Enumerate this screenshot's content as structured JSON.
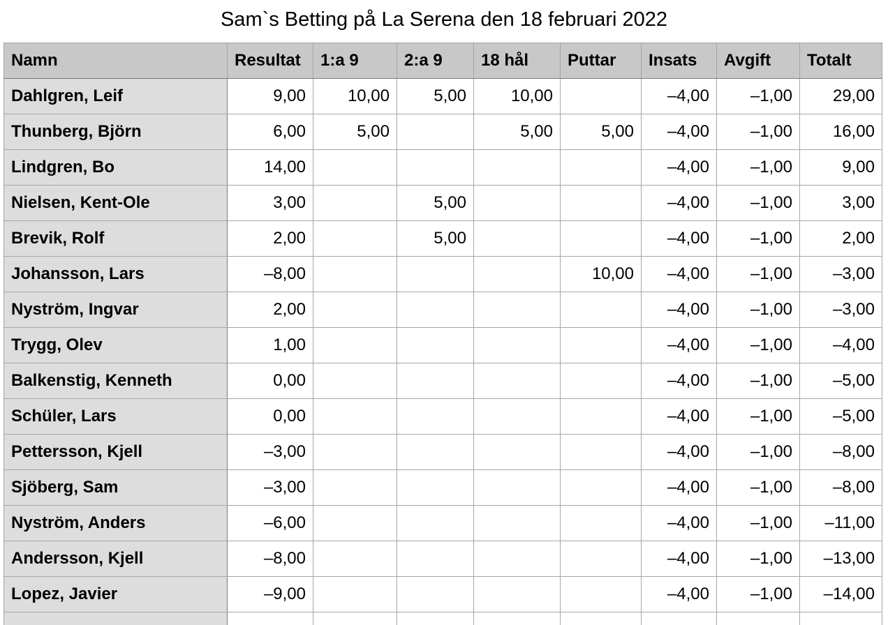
{
  "title": "Sam`s Betting på La Serena den 18 februari 2022",
  "columns": [
    "Namn",
    "Resultat",
    "1:a 9",
    "2:a 9",
    "18 hål",
    "Puttar",
    "Insats",
    "Avgift",
    "Totalt"
  ],
  "rows": [
    [
      "Dahlgren, Leif",
      "9,00",
      "10,00",
      "5,00",
      "10,00",
      "",
      "–4,00",
      "–1,00",
      "29,00"
    ],
    [
      "Thunberg, Björn",
      "6,00",
      "5,00",
      "",
      "5,00",
      "5,00",
      "–4,00",
      "–1,00",
      "16,00"
    ],
    [
      "Lindgren, Bo",
      "14,00",
      "",
      "",
      "",
      "",
      "–4,00",
      "–1,00",
      "9,00"
    ],
    [
      "Nielsen, Kent-Ole",
      "3,00",
      "",
      "5,00",
      "",
      "",
      "–4,00",
      "–1,00",
      "3,00"
    ],
    [
      "Brevik, Rolf",
      "2,00",
      "",
      "5,00",
      "",
      "",
      "–4,00",
      "–1,00",
      "2,00"
    ],
    [
      "Johansson, Lars",
      "–8,00",
      "",
      "",
      "",
      "10,00",
      "–4,00",
      "–1,00",
      "–3,00"
    ],
    [
      "Nyström, Ingvar",
      "2,00",
      "",
      "",
      "",
      "",
      "–4,00",
      "–1,00",
      "–3,00"
    ],
    [
      "Trygg, Olev",
      "1,00",
      "",
      "",
      "",
      "",
      "–4,00",
      "–1,00",
      "–4,00"
    ],
    [
      "Balkenstig, Kenneth",
      "0,00",
      "",
      "",
      "",
      "",
      "–4,00",
      "–1,00",
      "–5,00"
    ],
    [
      "Schüler, Lars",
      "0,00",
      "",
      "",
      "",
      "",
      "–4,00",
      "–1,00",
      "–5,00"
    ],
    [
      "Pettersson, Kjell",
      "–3,00",
      "",
      "",
      "",
      "",
      "–4,00",
      "–1,00",
      "–8,00"
    ],
    [
      "Sjöberg, Sam",
      "–3,00",
      "",
      "",
      "",
      "",
      "–4,00",
      "–1,00",
      "–8,00"
    ],
    [
      "Nyström, Anders",
      "–6,00",
      "",
      "",
      "",
      "",
      "–4,00",
      "–1,00",
      "–11,00"
    ],
    [
      "Andersson, Kjell",
      "–8,00",
      "",
      "",
      "",
      "",
      "–4,00",
      "–1,00",
      "–13,00"
    ],
    [
      "Lopez, Javier",
      "–9,00",
      "",
      "",
      "",
      "",
      "–4,00",
      "–1,00",
      "–14,00"
    ]
  ]
}
